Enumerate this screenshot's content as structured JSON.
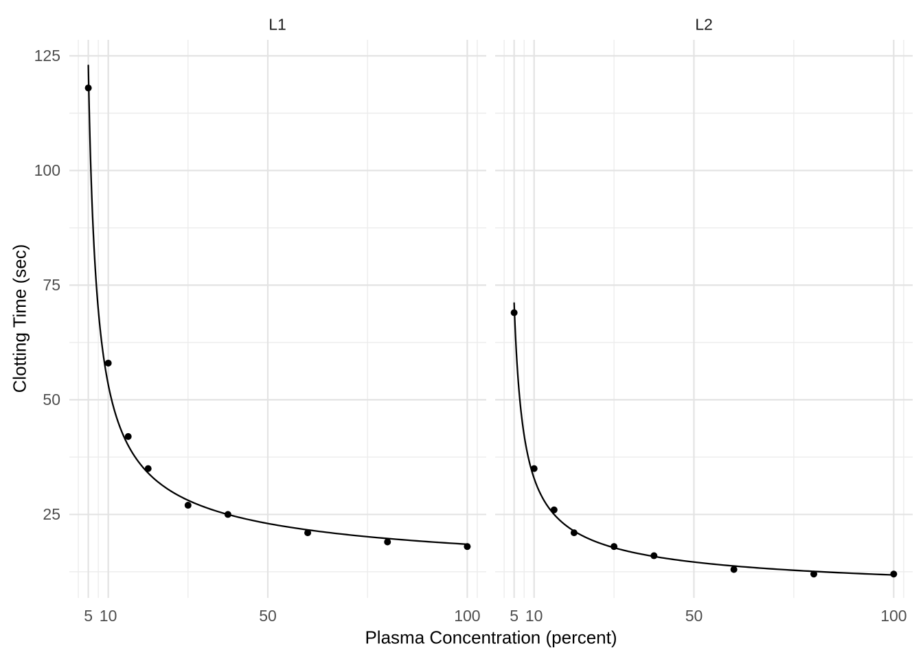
{
  "chart_data": {
    "type": "scatter",
    "title": "",
    "xlabel": "Plasma Concentration (percent)",
    "ylabel": "Clotting Time (sec)",
    "x_breaks": [
      5,
      10,
      50,
      100
    ],
    "x_tick_labels": [
      "5",
      "10",
      "50",
      "100"
    ],
    "x_minor_breaks": [
      2.5,
      7.5,
      30,
      75,
      102.5
    ],
    "y_breaks": [
      25,
      50,
      75,
      100,
      125
    ],
    "y_tick_labels": [
      "25",
      "50",
      "75",
      "100",
      "125"
    ],
    "y_minor_breaks": [
      12.5,
      37.5,
      62.5,
      87.5,
      112.5
    ],
    "xlim": [
      0.25,
      104.75
    ],
    "ylim": [
      6.8,
      128.5
    ],
    "grid": true,
    "legend": "none",
    "facets": [
      {
        "label": "L1",
        "points": {
          "x": [
            5,
            10,
            15,
            20,
            30,
            40,
            60,
            80,
            100
          ],
          "y": [
            118,
            58,
            42,
            35,
            27,
            25,
            21,
            19,
            18
          ]
        },
        "fit_curve": {
          "model": "y = 1 / (b0 + b1*ln(x))",
          "b0": -0.016534,
          "b1": 0.015328,
          "x_start": 5,
          "x_end": 100
        }
      },
      {
        "label": "L2",
        "points": {
          "x": [
            5,
            10,
            15,
            20,
            30,
            40,
            60,
            80,
            100
          ],
          "y": [
            69,
            35,
            26,
            21,
            18,
            16,
            13,
            12,
            12
          ]
        },
        "fit_curve": {
          "model": "y = 1 / (b0 + b1*ln(x))",
          "b0": -0.023907,
          "b1": 0.023594,
          "x_start": 5,
          "x_end": 100
        }
      }
    ],
    "colors": {
      "background": "#FFFFFF",
      "point": "#000000",
      "fit_line": "#000000",
      "grid_major": "#E3E3E3",
      "grid_minor": "#ECECEC",
      "tick_text": "#4D4D4D",
      "axis_title_text": "#000000",
      "strip_text": "#1A1A1A"
    }
  }
}
